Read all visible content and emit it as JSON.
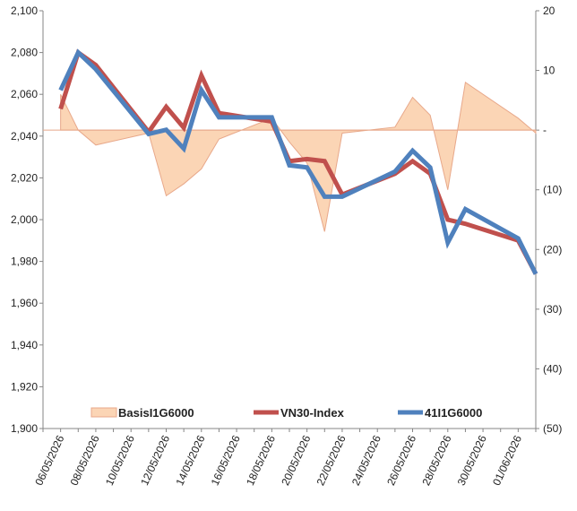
{
  "chart_data": {
    "type": "line",
    "title": "",
    "xlabel": "",
    "ylabel": "",
    "y2label": "",
    "ylim": [
      1900,
      2100
    ],
    "y2lim": [
      -50,
      20
    ],
    "yticks": [
      "2,100",
      "2,080",
      "2,060",
      "2,040",
      "2,020",
      "2,000",
      "1,980",
      "1,960",
      "1,940",
      "1,920",
      "1,900"
    ],
    "y2ticks": [
      "20",
      "10",
      "-",
      "(10)",
      "(20)",
      "(30)",
      "(40)",
      "(50)"
    ],
    "x_tick_labels": [
      "06/05/2026",
      "08/05/2026",
      "10/05/2026",
      "12/05/2026",
      "14/05/2026",
      "16/05/2026",
      "18/05/2026",
      "20/05/2026",
      "22/05/2026",
      "24/05/2026",
      "26/05/2026",
      "28/05/2026",
      "30/05/2026",
      "01/06/2026"
    ],
    "x": [
      "06/05/2026",
      "07/05/2026",
      "08/05/2026",
      "11/05/2026",
      "12/05/2026",
      "13/05/2026",
      "14/05/2026",
      "15/05/2026",
      "18/05/2026",
      "19/05/2026",
      "20/05/2026",
      "21/05/2026",
      "22/05/2026",
      "25/05/2026",
      "26/05/2026",
      "27/05/2026",
      "28/05/2026",
      "29/05/2026",
      "01/06/2026",
      "02/06/2026"
    ],
    "series": [
      {
        "name": "VN30-Index",
        "axis": "left",
        "kind": "line",
        "color": "#c0504d",
        "values": [
          2053,
          2080,
          2074,
          2042,
          2054,
          2044,
          2069,
          2051,
          2047,
          2028,
          2029,
          2028,
          2012,
          2022,
          2028,
          2022,
          2000,
          1998,
          1990,
          1974
        ]
      },
      {
        "name": "41I1G6000",
        "axis": "left",
        "kind": "line",
        "color": "#4f81bd",
        "values": [
          2062,
          2080,
          2072,
          2041,
          2043,
          2034,
          2062,
          2049,
          2049,
          2026,
          2025,
          2011,
          2011,
          2023,
          2033,
          2025,
          1989,
          2005,
          1991,
          1974
        ]
      },
      {
        "name": "BasisI1G6000",
        "axis": "right",
        "kind": "area",
        "color": "#fbd5b5",
        "values": [
          6,
          0,
          -2.5,
          -0.5,
          -11,
          -9,
          -6.5,
          -1.5,
          2,
          -2,
          -5.5,
          -17,
          -0.5,
          0.5,
          5.5,
          2.5,
          -10,
          8,
          2,
          -0.5
        ]
      }
    ],
    "legend": [
      "BasisI1G6000",
      "VN30-Index",
      "41I1G6000"
    ],
    "legend_position": "bottom-inside",
    "grid": false
  }
}
